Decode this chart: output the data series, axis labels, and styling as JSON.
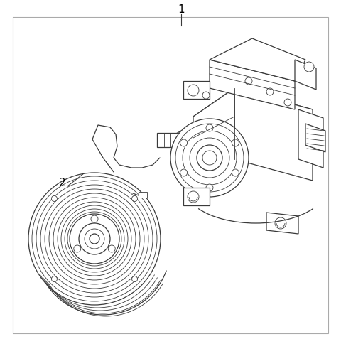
{
  "bg_white": "#ffffff",
  "border_color": "#999999",
  "line_color": "#3a3a3a",
  "label1_text": "1",
  "label2_text": "2",
  "fig_width": 4.8,
  "fig_height": 4.85,
  "dpi": 100,
  "font_size": 11,
  "lw_main": 0.9,
  "lw_thin": 0.6,
  "lw_border": 0.8
}
